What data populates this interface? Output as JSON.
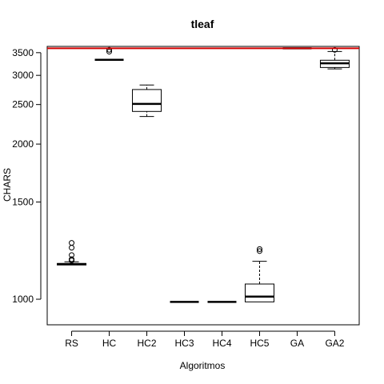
{
  "chart_data": {
    "type": "boxplot",
    "title": "tleaf",
    "xlabel": "Algoritmos",
    "ylabel": "CHARS",
    "ylim": [
      910,
      3660
    ],
    "yticks": [
      1000,
      1500,
      2000,
      2500,
      3000,
      3500
    ],
    "reference_line": {
      "value": 3610,
      "color": "#d40000"
    },
    "grid": false,
    "categories": [
      "RS",
      "HC",
      "HC2",
      "HC3",
      "HC4",
      "HC5",
      "GA",
      "GA2"
    ],
    "boxes": [
      {
        "name": "RS",
        "low": 1143,
        "q1": 1143,
        "median": 1147,
        "q3": 1150,
        "high": 1158,
        "outliers": [
          1164,
          1170,
          1190,
          1227,
          1252
        ]
      },
      {
        "name": "HC",
        "low": 3330,
        "q1": 3330,
        "median": 3330,
        "q3": 3330,
        "high": 3330,
        "outliers": [
          3525,
          3572
        ]
      },
      {
        "name": "HC2",
        "low": 2330,
        "q1": 2400,
        "median": 2510,
        "q3": 2740,
        "high": 2820,
        "outliers": []
      },
      {
        "name": "HC3",
        "low": 990,
        "q1": 990,
        "median": 990,
        "q3": 990,
        "high": 990,
        "outliers": []
      },
      {
        "name": "HC4",
        "low": 990,
        "q1": 990,
        "median": 990,
        "q3": 990,
        "high": 990,
        "outliers": []
      },
      {
        "name": "HC5",
        "low": 990,
        "q1": 990,
        "median": 1010,
        "q3": 1060,
        "high": 1160,
        "outliers": [
          1210,
          1220
        ]
      },
      {
        "name": "GA",
        "low": 3610,
        "q1": 3610,
        "median": 3610,
        "q3": 3610,
        "high": 3610,
        "outliers": []
      },
      {
        "name": "GA2",
        "low": 3130,
        "q1": 3160,
        "median": 3250,
        "q3": 3320,
        "high": 3530,
        "outliers": [
          3570
        ]
      }
    ]
  }
}
